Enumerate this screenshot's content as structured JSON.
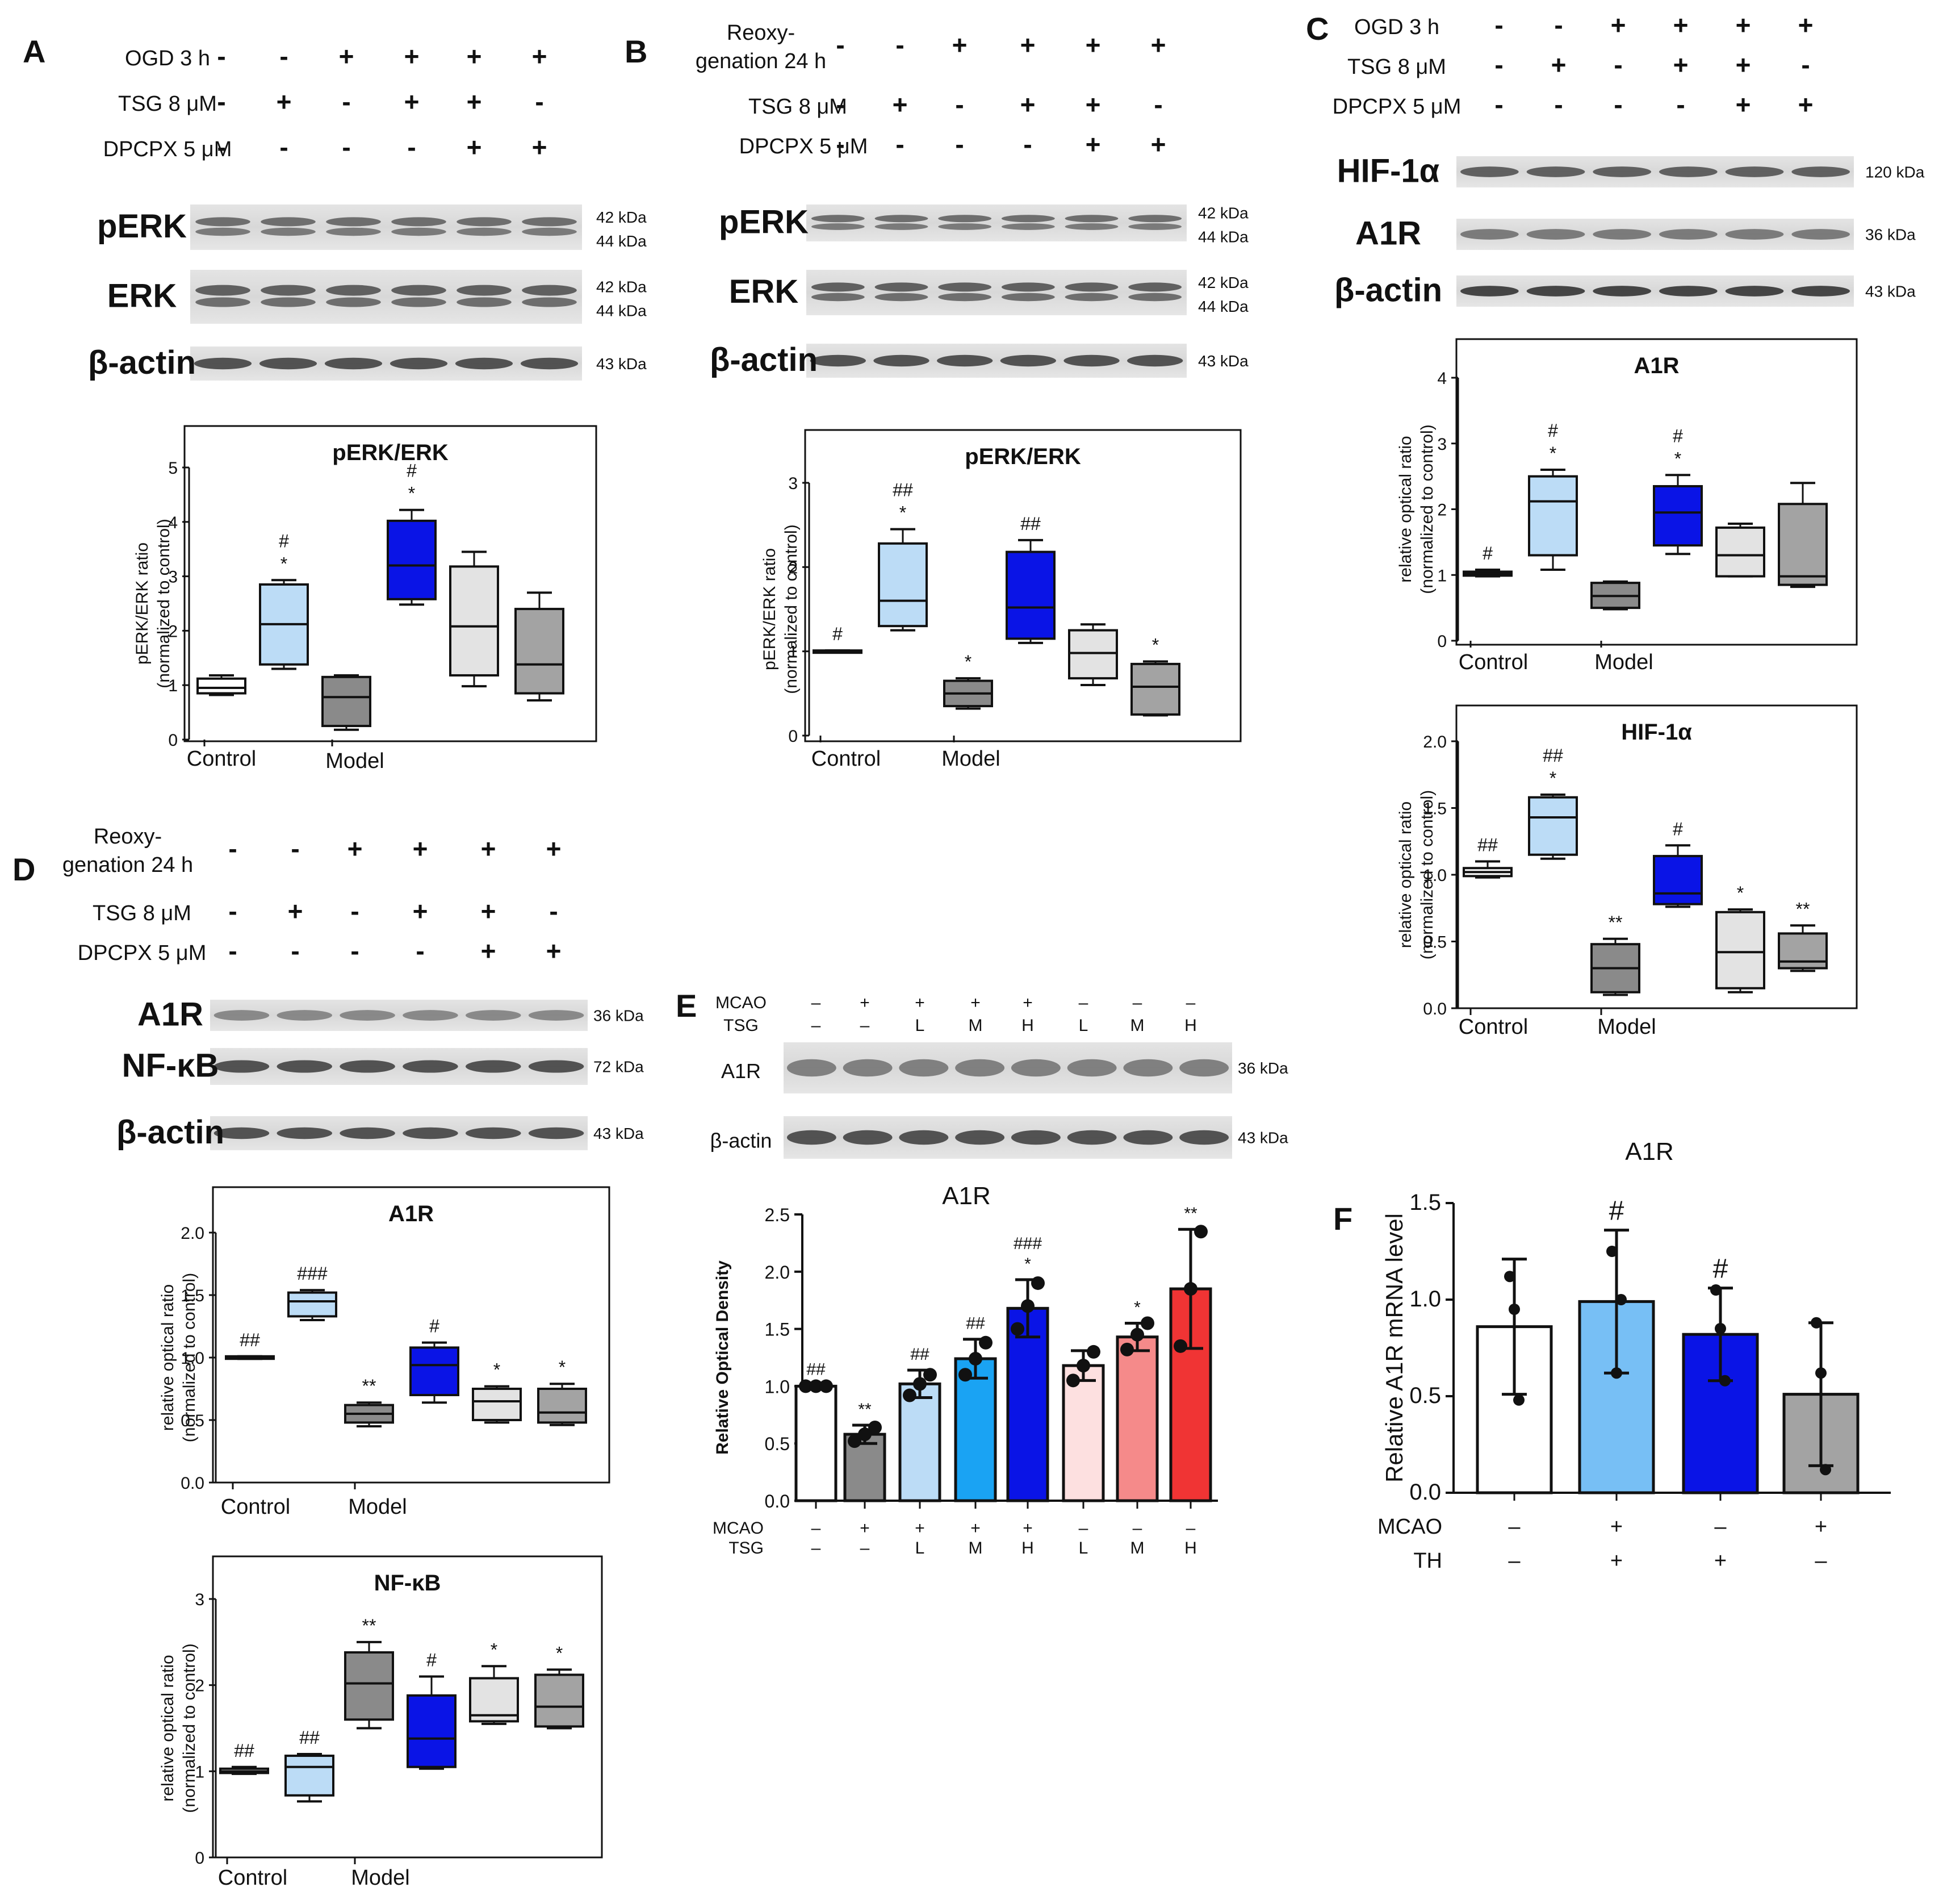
{
  "panels": {
    "A": {
      "letter": "A",
      "conditions": [
        {
          "label": "OGD 3 h",
          "signs": [
            "-",
            "-",
            "+",
            "+",
            "+",
            "+"
          ]
        },
        {
          "label": "TSG 8 μM",
          "signs": [
            "-",
            "+",
            "-",
            "+",
            "+",
            "-"
          ]
        },
        {
          "label": "DPCPX 5 μM",
          "signs": [
            "-",
            "-",
            "-",
            "-",
            "+",
            "+"
          ]
        }
      ],
      "blots": [
        {
          "label": "pERK",
          "kda": [
            "42 kDa",
            "44 kDa"
          ]
        },
        {
          "label": "ERK",
          "kda": [
            "42 kDa",
            "44 kDa"
          ]
        },
        {
          "label": "β-actin",
          "kda": [
            "43 kDa"
          ]
        }
      ]
    },
    "B": {
      "letter": "B",
      "conditions": [
        {
          "label": "Reoxy-\ngenation 24 h",
          "signs": [
            "-",
            "-",
            "+",
            "+",
            "+",
            "+"
          ]
        },
        {
          "label": "TSG 8 μM",
          "signs": [
            "-",
            "+",
            "-",
            "+",
            "+",
            "-"
          ]
        },
        {
          "label": "DPCPX 5 μM",
          "signs": [
            "-",
            "-",
            "-",
            "-",
            "+",
            "+"
          ]
        }
      ],
      "blots": [
        {
          "label": "pERK",
          "kda": [
            "42 kDa",
            "44 kDa"
          ]
        },
        {
          "label": "ERK",
          "kda": [
            "42 kDa",
            "44 kDa"
          ]
        },
        {
          "label": "β-actin",
          "kda": [
            "43 kDa"
          ]
        }
      ]
    },
    "C": {
      "letter": "C",
      "conditions": [
        {
          "label": "OGD 3 h",
          "signs": [
            "-",
            "-",
            "+",
            "+",
            "+",
            "+"
          ]
        },
        {
          "label": "TSG 8 μM",
          "signs": [
            "-",
            "+",
            "-",
            "+",
            "+",
            "-"
          ]
        },
        {
          "label": "DPCPX 5 μM",
          "signs": [
            "-",
            "-",
            "-",
            "-",
            "+",
            "+"
          ]
        }
      ],
      "blots": [
        {
          "label": "HIF-1α",
          "kda": [
            "120 kDa"
          ]
        },
        {
          "label": "A1R",
          "kda": [
            "36 kDa"
          ]
        },
        {
          "label": "β-actin",
          "kda": [
            "43 kDa"
          ]
        }
      ]
    },
    "D": {
      "letter": "D",
      "conditions": [
        {
          "label": "Reoxy-\ngenation 24 h",
          "signs": [
            "-",
            "-",
            "+",
            "+",
            "+",
            "+"
          ]
        },
        {
          "label": "TSG 8 μM",
          "signs": [
            "-",
            "+",
            "-",
            "+",
            "+",
            "-"
          ]
        },
        {
          "label": "DPCPX 5 μM",
          "signs": [
            "-",
            "-",
            "-",
            "-",
            "+",
            "+"
          ]
        }
      ],
      "blots": [
        {
          "label": "A1R",
          "kda": [
            "36 kDa"
          ]
        },
        {
          "label": "NF-κB",
          "kda": [
            "72 kDa"
          ]
        },
        {
          "label": "β-actin",
          "kda": [
            "43 kDa"
          ]
        }
      ]
    },
    "E": {
      "letter": "E",
      "conditions": [
        {
          "label": "MCAO",
          "signs": [
            "–",
            "+",
            "+",
            "+",
            "+",
            "–",
            "–",
            "–"
          ]
        },
        {
          "label": "TSG",
          "signs": [
            "–",
            "–",
            "L",
            "M",
            "H",
            "L",
            "M",
            "H"
          ]
        }
      ],
      "blots": [
        {
          "label": "A1R",
          "kda": [
            "36 kDa"
          ]
        },
        {
          "label": "β-actin",
          "kda": [
            "43 kDa"
          ]
        }
      ]
    },
    "F": {
      "letter": "F"
    }
  },
  "colors": {
    "white": "#ffffff",
    "light_blue": "#bcdcf6",
    "dark_gray": "#8a8a8a",
    "blue": "#0a14e6",
    "light_gray": "#e3e3e3",
    "mid_gray": "#a3a3a3",
    "sky_blue": "#77bff5",
    "azure": "#1aa3f3",
    "pale_pink": "#fde0e0",
    "salmon": "#f58a8a",
    "red": "#f03434"
  },
  "chart_data": [
    {
      "id": "A",
      "type": "boxplot",
      "title": "pERK/ERK",
      "ylabel": [
        "pERK/ERK ratio",
        "(normalized to control)"
      ],
      "ylim": [
        0,
        5
      ],
      "yticks": [
        0,
        1,
        2,
        3,
        4,
        5
      ],
      "xlabels": [
        "Control",
        "Model"
      ],
      "groups": [
        {
          "min": 0.82,
          "q1": 0.85,
          "median": 0.95,
          "q3": 1.12,
          "max": 1.18,
          "color": "white",
          "ann": []
        },
        {
          "min": 1.3,
          "q1": 1.38,
          "median": 2.12,
          "q3": 2.85,
          "max": 2.93,
          "color": "light_blue",
          "ann": [
            "*",
            "#"
          ]
        },
        {
          "min": 0.18,
          "q1": 0.25,
          "median": 0.78,
          "q3": 1.15,
          "max": 1.18,
          "color": "dark_gray",
          "ann": []
        },
        {
          "min": 2.48,
          "q1": 2.58,
          "median": 3.2,
          "q3": 4.02,
          "max": 4.22,
          "color": "blue",
          "ann": [
            "*",
            "#"
          ]
        },
        {
          "min": 0.98,
          "q1": 1.18,
          "median": 2.08,
          "q3": 3.18,
          "max": 3.45,
          "color": "light_gray",
          "ann": []
        },
        {
          "min": 0.72,
          "q1": 0.85,
          "median": 1.38,
          "q3": 2.4,
          "max": 2.7,
          "color": "mid_gray",
          "ann": []
        }
      ]
    },
    {
      "id": "B",
      "type": "boxplot",
      "title": "pERK/ERK",
      "ylabel": [
        "pERK/ERK ratio",
        "(normalized to control)"
      ],
      "ylim": [
        0,
        3
      ],
      "yticks": [
        0,
        1,
        2,
        3
      ],
      "xlabels": [
        "Control",
        "Model"
      ],
      "groups": [
        {
          "min": 0.99,
          "q1": 0.99,
          "median": 1.0,
          "q3": 1.01,
          "max": 1.01,
          "color": "white",
          "ann": [
            "#"
          ]
        },
        {
          "min": 1.25,
          "q1": 1.3,
          "median": 1.6,
          "q3": 2.28,
          "max": 2.45,
          "color": "light_blue",
          "ann": [
            "*",
            "##"
          ]
        },
        {
          "min": 0.32,
          "q1": 0.35,
          "median": 0.5,
          "q3": 0.65,
          "max": 0.68,
          "color": "dark_gray",
          "ann": [
            "*"
          ]
        },
        {
          "min": 1.1,
          "q1": 1.15,
          "median": 1.52,
          "q3": 2.18,
          "max": 2.32,
          "color": "blue",
          "ann": [
            "##"
          ]
        },
        {
          "min": 0.6,
          "q1": 0.68,
          "median": 0.98,
          "q3": 1.25,
          "max": 1.32,
          "color": "light_gray",
          "ann": []
        },
        {
          "min": 0.24,
          "q1": 0.25,
          "median": 0.58,
          "q3": 0.85,
          "max": 0.88,
          "color": "mid_gray",
          "ann": [
            "*"
          ]
        }
      ]
    },
    {
      "id": "C1",
      "type": "boxplot",
      "title": "A1R",
      "ylabel": [
        "relative optical ratio",
        "(normalized to control)"
      ],
      "ylim": [
        0,
        4
      ],
      "yticks": [
        0,
        1,
        2,
        3,
        4
      ],
      "xlabels": [
        "Control",
        "Model"
      ],
      "groups": [
        {
          "min": 0.98,
          "q1": 0.99,
          "median": 1.02,
          "q3": 1.05,
          "max": 1.08,
          "color": "white",
          "ann": [
            "#"
          ]
        },
        {
          "min": 1.08,
          "q1": 1.3,
          "median": 2.12,
          "q3": 2.5,
          "max": 2.6,
          "color": "light_blue",
          "ann": [
            "*",
            "#"
          ]
        },
        {
          "min": 0.48,
          "q1": 0.5,
          "median": 0.68,
          "q3": 0.88,
          "max": 0.9,
          "color": "dark_gray",
          "ann": []
        },
        {
          "min": 1.32,
          "q1": 1.45,
          "median": 1.95,
          "q3": 2.35,
          "max": 2.52,
          "color": "blue",
          "ann": [
            "*",
            "#"
          ]
        },
        {
          "min": 0.98,
          "q1": 0.98,
          "median": 1.3,
          "q3": 1.72,
          "max": 1.78,
          "color": "light_gray",
          "ann": []
        },
        {
          "min": 0.82,
          "q1": 0.85,
          "median": 0.98,
          "q3": 2.08,
          "max": 2.4,
          "color": "mid_gray",
          "ann": []
        }
      ]
    },
    {
      "id": "C2",
      "type": "boxplot",
      "title": "HIF-1α",
      "ylabel": [
        "relative optical ratio",
        "(normalized to control)"
      ],
      "ylim": [
        0,
        2.0
      ],
      "yticks": [
        0.0,
        0.5,
        1.0,
        1.5,
        2.0
      ],
      "xlabels": [
        "Control",
        "Model"
      ],
      "groups": [
        {
          "min": 0.98,
          "q1": 0.99,
          "median": 1.02,
          "q3": 1.05,
          "max": 1.1,
          "color": "white",
          "ann": [
            "##"
          ]
        },
        {
          "min": 1.12,
          "q1": 1.15,
          "median": 1.43,
          "q3": 1.58,
          "max": 1.6,
          "color": "light_blue",
          "ann": [
            "*",
            "##"
          ]
        },
        {
          "min": 0.1,
          "q1": 0.12,
          "median": 0.3,
          "q3": 0.48,
          "max": 0.52,
          "color": "dark_gray",
          "ann": [
            "**"
          ]
        },
        {
          "min": 0.76,
          "q1": 0.78,
          "median": 0.86,
          "q3": 1.14,
          "max": 1.22,
          "color": "blue",
          "ann": [
            "#"
          ]
        },
        {
          "min": 0.12,
          "q1": 0.15,
          "median": 0.42,
          "q3": 0.72,
          "max": 0.74,
          "color": "light_gray",
          "ann": [
            "*"
          ]
        },
        {
          "min": 0.28,
          "q1": 0.3,
          "median": 0.35,
          "q3": 0.56,
          "max": 0.62,
          "color": "mid_gray",
          "ann": [
            "**"
          ]
        }
      ]
    },
    {
      "id": "D1",
      "type": "boxplot",
      "title": "A1R",
      "ylabel": [
        "relative optical ratio",
        "(normalized to control)"
      ],
      "ylim": [
        0,
        2.0
      ],
      "yticks": [
        0.0,
        0.5,
        1.0,
        1.5,
        2.0
      ],
      "xlabels": [
        "Control",
        "Model"
      ],
      "groups": [
        {
          "min": 0.99,
          "q1": 0.99,
          "median": 1.0,
          "q3": 1.01,
          "max": 1.01,
          "color": "white",
          "ann": [
            "##"
          ]
        },
        {
          "min": 1.3,
          "q1": 1.33,
          "median": 1.45,
          "q3": 1.52,
          "max": 1.54,
          "color": "light_blue",
          "ann": [
            "###"
          ]
        },
        {
          "min": 0.45,
          "q1": 0.48,
          "median": 0.55,
          "q3": 0.62,
          "max": 0.64,
          "color": "dark_gray",
          "ann": [
            "**"
          ]
        },
        {
          "min": 0.64,
          "q1": 0.7,
          "median": 0.94,
          "q3": 1.08,
          "max": 1.12,
          "color": "blue",
          "ann": [
            "#"
          ]
        },
        {
          "min": 0.48,
          "q1": 0.5,
          "median": 0.65,
          "q3": 0.75,
          "max": 0.77,
          "color": "light_gray",
          "ann": [
            "*"
          ]
        },
        {
          "min": 0.46,
          "q1": 0.48,
          "median": 0.56,
          "q3": 0.75,
          "max": 0.79,
          "color": "mid_gray",
          "ann": [
            "*"
          ]
        }
      ]
    },
    {
      "id": "D2",
      "type": "boxplot",
      "title": "NF-κB",
      "ylabel": [
        "relative optical ratio",
        "(normalized to control)"
      ],
      "ylim": [
        0,
        3
      ],
      "yticks": [
        0,
        1,
        2,
        3
      ],
      "xlabels": [
        "Control",
        "Model"
      ],
      "groups": [
        {
          "min": 0.97,
          "q1": 0.98,
          "median": 1.0,
          "q3": 1.03,
          "max": 1.05,
          "color": "white",
          "ann": [
            "##"
          ]
        },
        {
          "min": 0.65,
          "q1": 0.72,
          "median": 1.05,
          "q3": 1.18,
          "max": 1.2,
          "color": "light_blue",
          "ann": [
            "##"
          ]
        },
        {
          "min": 1.5,
          "q1": 1.6,
          "median": 2.02,
          "q3": 2.38,
          "max": 2.5,
          "color": "dark_gray",
          "ann": [
            "**"
          ]
        },
        {
          "min": 1.03,
          "q1": 1.05,
          "median": 1.38,
          "q3": 1.88,
          "max": 2.1,
          "color": "blue",
          "ann": [
            "#"
          ]
        },
        {
          "min": 1.55,
          "q1": 1.58,
          "median": 1.65,
          "q3": 2.08,
          "max": 2.22,
          "color": "light_gray",
          "ann": [
            "*"
          ]
        },
        {
          "min": 1.5,
          "q1": 1.52,
          "median": 1.75,
          "q3": 2.12,
          "max": 2.18,
          "color": "mid_gray",
          "ann": [
            "*"
          ]
        }
      ]
    },
    {
      "id": "E",
      "type": "bar",
      "title": "A1R",
      "ylabel": "Relative Optical Density",
      "ylim": [
        0,
        2.5
      ],
      "yticks": [
        "0.0",
        "0.5",
        "1.0",
        "1.5",
        "2.0",
        "2.5"
      ],
      "rows": [
        {
          "label": "MCAO",
          "signs": [
            "–",
            "+",
            "+",
            "+",
            "+",
            "–",
            "–",
            "–"
          ]
        },
        {
          "label": "TSG",
          "signs": [
            "–",
            "–",
            "L",
            "M",
            "H",
            "L",
            "M",
            "H"
          ]
        }
      ],
      "bars": [
        {
          "value": 1.0,
          "err": 0.01,
          "points": [
            1.0,
            1.0,
            1.0
          ],
          "color": "white",
          "ann": [
            "##"
          ]
        },
        {
          "value": 0.58,
          "err": 0.08,
          "points": [
            0.52,
            0.58,
            0.64
          ],
          "color": "dark_gray",
          "ann": [
            "**"
          ]
        },
        {
          "value": 1.02,
          "err": 0.12,
          "points": [
            0.92,
            1.02,
            1.1
          ],
          "color": "light_blue",
          "ann": [
            "##"
          ]
        },
        {
          "value": 1.24,
          "err": 0.17,
          "points": [
            1.1,
            1.24,
            1.38
          ],
          "color": "azure",
          "ann": [
            "##"
          ]
        },
        {
          "value": 1.68,
          "err": 0.25,
          "points": [
            1.5,
            1.7,
            1.9
          ],
          "color": "blue",
          "ann": [
            "*",
            "###"
          ]
        },
        {
          "value": 1.18,
          "err": 0.13,
          "points": [
            1.05,
            1.18,
            1.3
          ],
          "color": "pale_pink",
          "ann": []
        },
        {
          "value": 1.43,
          "err": 0.12,
          "points": [
            1.32,
            1.45,
            1.55
          ],
          "color": "salmon",
          "ann": [
            "*"
          ]
        },
        {
          "value": 1.85,
          "err": 0.52,
          "points": [
            1.35,
            1.85,
            2.35
          ],
          "color": "red",
          "ann": [
            "**"
          ]
        }
      ]
    },
    {
      "id": "F",
      "type": "bar",
      "title": "A1R",
      "ylabel": "Relative A1R mRNA level",
      "ylim": [
        0,
        1.5
      ],
      "yticks": [
        "0.0",
        "0.5",
        "1.0",
        "1.5"
      ],
      "rows": [
        {
          "label": "MCAO",
          "signs": [
            "–",
            "+",
            "–",
            "+"
          ]
        },
        {
          "label": "TH",
          "signs": [
            "–",
            "+",
            "+",
            "–"
          ]
        }
      ],
      "bars": [
        {
          "value": 0.86,
          "err": 0.35,
          "points": [
            1.12,
            0.95,
            0.48
          ],
          "color": "white",
          "ann": []
        },
        {
          "value": 0.99,
          "err": 0.37,
          "points": [
            1.25,
            0.62,
            1.0
          ],
          "color": "sky_blue",
          "ann": [
            "#"
          ]
        },
        {
          "value": 0.82,
          "err": 0.24,
          "points": [
            1.05,
            0.85,
            0.58
          ],
          "color": "blue",
          "ann": [
            "#"
          ]
        },
        {
          "value": 0.51,
          "err": 0.37,
          "points": [
            0.88,
            0.62,
            0.12
          ],
          "color": "mid_gray",
          "ann": []
        }
      ]
    }
  ]
}
